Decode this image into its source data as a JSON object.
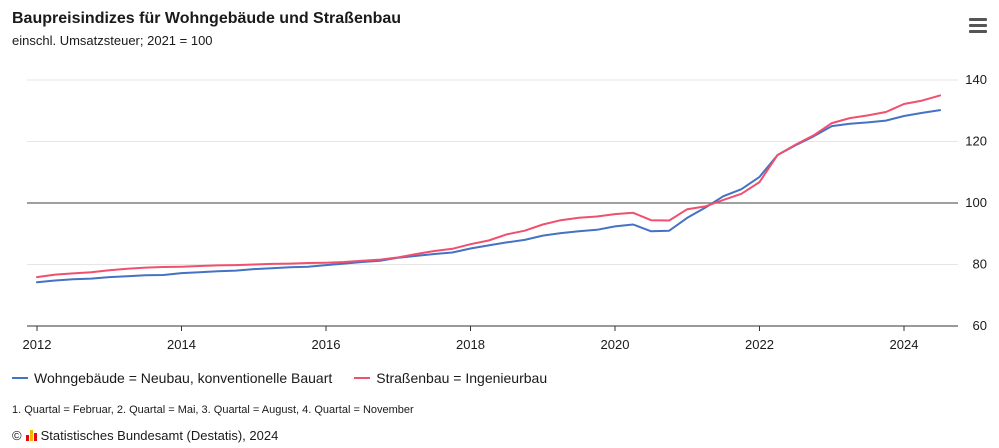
{
  "title": "Baupreisindizes für Wohngebäude und Straßenbau",
  "subtitle": "einschl. Umsatzsteuer; 2021 = 100",
  "footnote": "1. Quartal = Februar, 2. Quartal = Mai, 3. Quartal = August, 4. Quartal = November",
  "source": {
    "copyright_symbol": "©",
    "text": "Statistisches Bundesamt (Destatis), 2024"
  },
  "icons": {
    "menu": "hamburger-menu-icon",
    "logo": "destatis-logo-icon"
  },
  "colors": {
    "series_1": "#4472c4",
    "series_2": "#f0506e",
    "reference_line": "#666666",
    "gridline": "#e6e6e6"
  },
  "chart_data": {
    "type": "line",
    "title": "Baupreisindizes für Wohngebäude und Straßenbau",
    "subtitle": "einschl. Umsatzsteuer; 2021 = 100",
    "xlabel": "",
    "ylabel": "",
    "xlim": [
      2012,
      2024.75
    ],
    "ylim": [
      60,
      140
    ],
    "x_ticks": [
      "2012",
      "2014",
      "2016",
      "2018",
      "2020",
      "2022",
      "2024"
    ],
    "y_ticks": [
      "60",
      "80",
      "100",
      "120",
      "140"
    ],
    "y_axis_position": "right",
    "grid": true,
    "reference_line": 100,
    "legend_position": "bottom-left",
    "x": [
      2012.0,
      2012.25,
      2012.5,
      2012.75,
      2013.0,
      2013.25,
      2013.5,
      2013.75,
      2014.0,
      2014.25,
      2014.5,
      2014.75,
      2015.0,
      2015.25,
      2015.5,
      2015.75,
      2016.0,
      2016.25,
      2016.5,
      2016.75,
      2017.0,
      2017.25,
      2017.5,
      2017.75,
      2018.0,
      2018.25,
      2018.5,
      2018.75,
      2019.0,
      2019.25,
      2019.5,
      2019.75,
      2020.0,
      2020.25,
      2020.5,
      2020.75,
      2021.0,
      2021.25,
      2021.5,
      2021.75,
      2022.0,
      2022.25,
      2022.5,
      2022.75,
      2023.0,
      2023.25,
      2023.5,
      2023.75,
      2024.0,
      2024.25,
      2024.5
    ],
    "series": [
      {
        "name": "Wohngebäude = Neubau, konventionelle Bauart",
        "values": [
          74.2,
          74.8,
          75.2,
          75.4,
          75.9,
          76.2,
          76.5,
          76.6,
          77.2,
          77.5,
          77.8,
          78.0,
          78.5,
          78.8,
          79.1,
          79.3,
          79.8,
          80.3,
          80.8,
          81.2,
          82.2,
          82.8,
          83.4,
          83.9,
          85.2,
          86.2,
          87.2,
          88.0,
          89.4,
          90.2,
          90.8,
          91.3,
          92.4,
          93.0,
          90.8,
          91.0,
          95.2,
          98.5,
          102.2,
          104.5,
          108.5,
          115.6,
          118.8,
          121.7,
          125.0,
          125.8,
          126.2,
          126.8,
          128.3,
          129.3,
          130.2
        ]
      },
      {
        "name": "Straßenbau = Ingenieurbau",
        "values": [
          75.9,
          76.7,
          77.1,
          77.5,
          78.1,
          78.6,
          79.0,
          79.2,
          79.3,
          79.5,
          79.7,
          79.8,
          80.0,
          80.2,
          80.3,
          80.5,
          80.6,
          80.8,
          81.2,
          81.6,
          82.3,
          83.4,
          84.4,
          85.1,
          86.6,
          87.8,
          89.8,
          91.0,
          93.0,
          94.4,
          95.2,
          95.6,
          96.4,
          96.8,
          94.4,
          94.3,
          98.0,
          98.9,
          101.0,
          103.0,
          106.8,
          115.6,
          119.0,
          122.0,
          126.0,
          127.6,
          128.5,
          129.6,
          132.2,
          133.3,
          135.0
        ]
      }
    ]
  }
}
